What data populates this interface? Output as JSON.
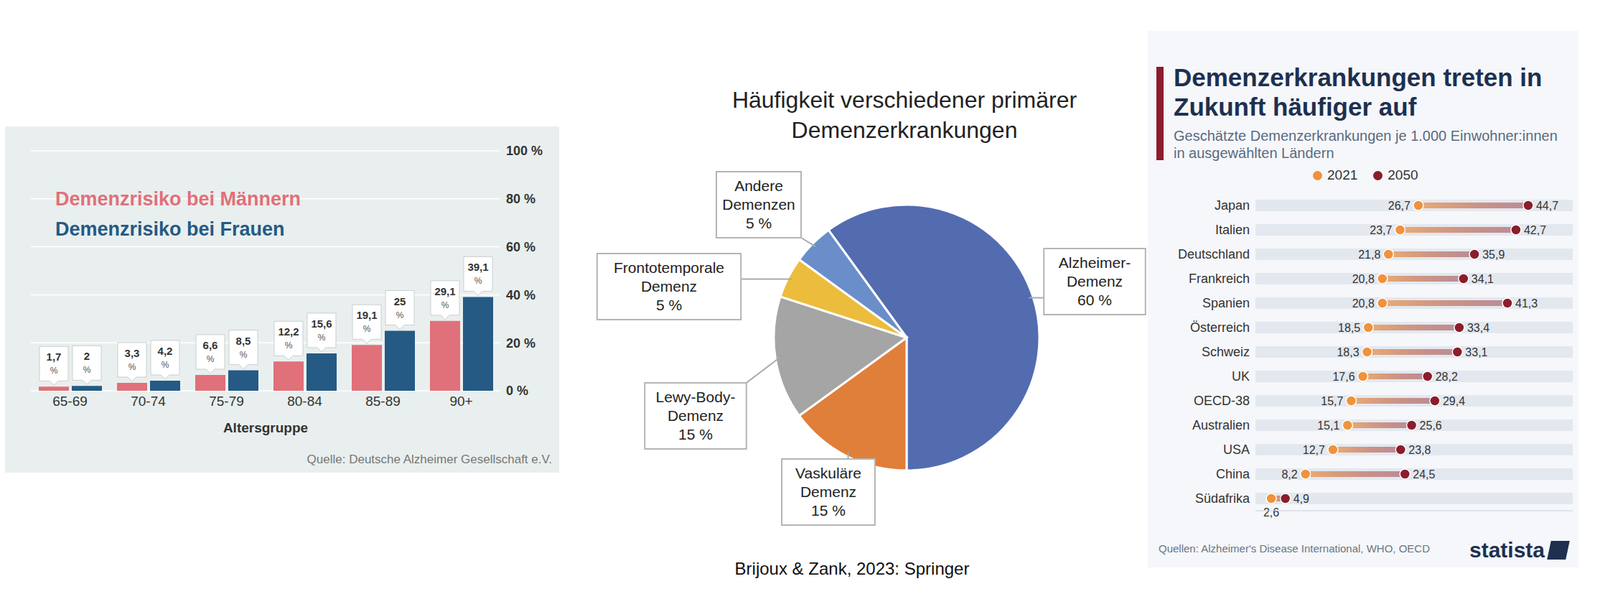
{
  "chart_data": [
    {
      "type": "bar",
      "x_label": "Altersgruppe",
      "categories": [
        "65-69",
        "70-74",
        "75-79",
        "80-84",
        "85-89",
        "90+"
      ],
      "series": [
        {
          "name": "Demenzrisiko bei Männern",
          "color": "#e0707a",
          "values": [
            1.7,
            3.3,
            6.6,
            12.2,
            19.1,
            29.1
          ],
          "value_labels": [
            "1,7 %",
            "3,3 %",
            "6,6 %",
            "12,2 %",
            "19,1 %",
            "29,1 %"
          ]
        },
        {
          "name": "Demenzrisiko bei Frauen",
          "color": "#245a84",
          "values": [
            2,
            4.2,
            8.5,
            15.6,
            25,
            39.1
          ],
          "value_labels": [
            "2 %",
            "4,2 %",
            "8,5 %",
            "15,6 %",
            "25 %",
            "39,1 %"
          ]
        }
      ],
      "ylim": [
        0,
        100
      ],
      "yticks": [
        {
          "value": 0,
          "label": "0 %"
        },
        {
          "value": 20,
          "label": "20 %"
        },
        {
          "value": 40,
          "label": "40 %"
        },
        {
          "value": 60,
          "label": "60 %"
        },
        {
          "value": 80,
          "label": "80 %"
        },
        {
          "value": 100,
          "label": "100 %"
        }
      ],
      "grid": true,
      "legend": "top-left",
      "data_labels": true,
      "source": "Quelle: Deutsche Alzheimer Gesellschaft e.V."
    },
    {
      "type": "pie",
      "title": "Häufigkeit verschiedener primärer Demenzerkrankungen",
      "categories": [
        "Alzheimer-Demenz",
        "Vaskuläre Demenz",
        "Lewy-Body-Demenz",
        "Frontotemporale Demenz",
        "Andere Demenzen"
      ],
      "values": [
        60,
        15,
        15,
        5,
        5
      ],
      "value_labels": [
        "60 %",
        "15 %",
        "15 %",
        "5 %",
        "5 %"
      ],
      "colors": [
        "#536cb0",
        "#e07f3a",
        "#a5a5a5",
        "#ecbd3c",
        "#6a8ec9"
      ],
      "data_labels": true
    },
    {
      "type": "dumbbell",
      "orientation": "horizontal",
      "title": "Demenzerkrankungen treten in Zukunft häufiger auf",
      "subtitle": "Geschätzte Demenzerkrankungen je 1.000 Einwohner:innen in ausgewählten Ländern",
      "categories": [
        "Japan",
        "Italien",
        "Deutschland",
        "Frankreich",
        "Spanien",
        "Österreich",
        "Schweiz",
        "UK",
        "OECD-38",
        "Australien",
        "USA",
        "China",
        "Südafrika"
      ],
      "series": [
        {
          "name": "2021",
          "color": "#f0923c",
          "values": [
            26.7,
            23.7,
            21.8,
            20.8,
            20.8,
            18.5,
            18.3,
            17.6,
            15.7,
            15.1,
            12.7,
            8.2,
            2.6
          ],
          "value_labels": [
            "26,7",
            "23,7",
            "21,8",
            "20,8",
            "20,8",
            "18,5",
            "18,3",
            "17,6",
            "15,7",
            "15,1",
            "12,7",
            "8,2",
            "2,6"
          ]
        },
        {
          "name": "2050",
          "color": "#8b1d2c",
          "values": [
            44.7,
            42.7,
            35.9,
            34.1,
            41.3,
            33.4,
            33.1,
            28.2,
            29.4,
            25.6,
            23.8,
            24.5,
            4.9
          ],
          "value_labels": [
            "44,7",
            "42,7",
            "35,9",
            "34,1",
            "41,3",
            "33,4",
            "33,1",
            "28,2",
            "29,4",
            "25,6",
            "23,8",
            "24,5",
            "4,9"
          ]
        }
      ],
      "xlim": [
        0,
        52
      ],
      "tick_labels": "y",
      "legend": "top-left",
      "data_labels": true,
      "source": "Quellen: Alzheimer's Disease International, WHO, OECD",
      "logo": "statista"
    }
  ],
  "caption": "Brijoux & Zank, 2023: Springer"
}
